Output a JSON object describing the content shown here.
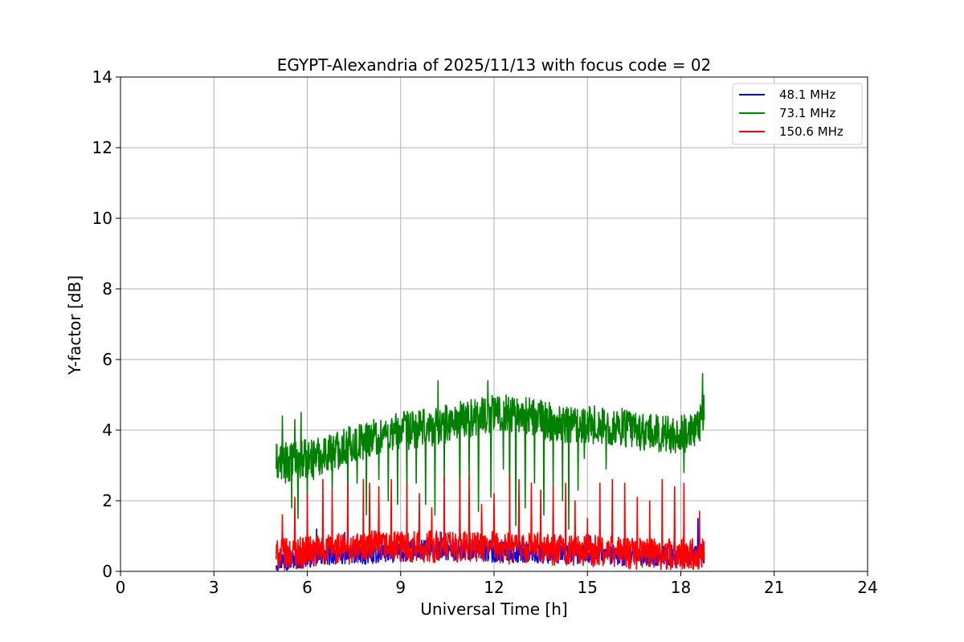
{
  "chart_data": {
    "type": "line",
    "title": "EGYPT-Alexandria of 2025/11/13 with focus code = 02",
    "xlabel": "Universal Time [h]",
    "ylabel": "Y-factor [dB]",
    "xlim": [
      0,
      24
    ],
    "ylim": [
      0,
      14
    ],
    "xticks": [
      0,
      3,
      6,
      9,
      12,
      15,
      18,
      21,
      24
    ],
    "yticks": [
      0,
      2,
      4,
      6,
      8,
      10,
      12,
      14
    ],
    "grid": true,
    "legend_position": "top-right",
    "series": [
      {
        "name": "  48.1 MHz",
        "color": "#0000ff",
        "x": [
          5.0,
          5.5,
          6.0,
          6.5,
          7.0,
          7.5,
          8.0,
          8.5,
          9.0,
          9.5,
          10.0,
          10.5,
          11.0,
          11.5,
          12.0,
          12.5,
          13.0,
          13.5,
          14.0,
          14.5,
          15.0,
          15.5,
          16.0,
          16.5,
          17.0,
          17.5,
          18.0,
          18.5,
          18.75
        ],
        "y": [
          0.3,
          0.35,
          0.4,
          0.45,
          0.5,
          0.5,
          0.5,
          0.55,
          0.55,
          0.6,
          0.6,
          0.6,
          0.6,
          0.6,
          0.55,
          0.55,
          0.55,
          0.5,
          0.5,
          0.5,
          0.5,
          0.5,
          0.45,
          0.45,
          0.45,
          0.45,
          0.45,
          0.5,
          0.5
        ],
        "noise_amplitude": 0.3,
        "spikes": [
          [
            6.3,
            1.2
          ],
          [
            7.2,
            1.1
          ],
          [
            10.3,
            1.1
          ],
          [
            15.1,
            1.0
          ],
          [
            17.0,
            0.9
          ],
          [
            18.55,
            1.5
          ]
        ]
      },
      {
        "name": "  73.1 MHz",
        "color": "#008000",
        "x": [
          5.0,
          5.5,
          6.0,
          6.5,
          7.0,
          7.5,
          8.0,
          8.5,
          9.0,
          9.5,
          10.0,
          10.5,
          11.0,
          11.5,
          12.0,
          12.5,
          13.0,
          13.5,
          14.0,
          14.5,
          15.0,
          15.5,
          16.0,
          16.5,
          17.0,
          17.5,
          18.0,
          18.5,
          18.75
        ],
        "y": [
          3.1,
          3.1,
          3.2,
          3.3,
          3.5,
          3.6,
          3.8,
          3.9,
          4.0,
          4.0,
          4.1,
          4.2,
          4.3,
          4.4,
          4.5,
          4.5,
          4.4,
          4.3,
          4.2,
          4.2,
          4.2,
          4.1,
          4.1,
          4.0,
          3.9,
          3.9,
          3.9,
          3.9,
          4.5
        ],
        "noise_amplitude": 0.55,
        "spikes": [
          [
            5.2,
            4.4
          ],
          [
            5.6,
            4.3
          ],
          [
            5.8,
            4.5
          ],
          [
            10.2,
            5.4
          ],
          [
            11.8,
            5.4
          ],
          [
            18.7,
            5.6
          ]
        ],
        "dips": [
          [
            5.3,
            2.5
          ],
          [
            5.5,
            1.8
          ],
          [
            5.7,
            1.5
          ],
          [
            6.0,
            2.0
          ],
          [
            6.2,
            2.6
          ],
          [
            6.6,
            3.2
          ],
          [
            6.8,
            2.3
          ],
          [
            7.0,
            2.9
          ],
          [
            7.3,
            1.7
          ],
          [
            7.6,
            2.5
          ],
          [
            7.9,
            1.6
          ],
          [
            8.3,
            2.6
          ],
          [
            8.6,
            2.0
          ],
          [
            8.9,
            1.9
          ],
          [
            9.2,
            2.1
          ],
          [
            9.5,
            2.5
          ],
          [
            9.8,
            1.9
          ],
          [
            10.1,
            1.6
          ],
          [
            10.4,
            2.5
          ],
          [
            10.9,
            1.4
          ],
          [
            11.2,
            2.6
          ],
          [
            11.5,
            1.7
          ],
          [
            11.9,
            2.1
          ],
          [
            12.3,
            2.9
          ],
          [
            12.5,
            1.5
          ],
          [
            12.7,
            1.3
          ],
          [
            13.0,
            1.8
          ],
          [
            13.3,
            2.5
          ],
          [
            13.6,
            1.6
          ],
          [
            13.9,
            2.3
          ],
          [
            14.2,
            2.0
          ],
          [
            14.4,
            1.2
          ],
          [
            14.7,
            2.3
          ],
          [
            14.9,
            3.2
          ],
          [
            15.6,
            2.9
          ],
          [
            18.1,
            2.8
          ]
        ]
      },
      {
        "name": "150.6 MHz",
        "color": "#ff0000",
        "x": [
          5.0,
          5.5,
          6.0,
          6.5,
          7.0,
          7.5,
          8.0,
          8.5,
          9.0,
          9.5,
          10.0,
          10.5,
          11.0,
          11.5,
          12.0,
          12.5,
          13.0,
          13.5,
          14.0,
          14.5,
          15.0,
          15.5,
          16.0,
          16.5,
          17.0,
          17.5,
          18.0,
          18.5,
          18.75
        ],
        "y": [
          0.45,
          0.5,
          0.55,
          0.6,
          0.65,
          0.65,
          0.7,
          0.7,
          0.7,
          0.7,
          0.7,
          0.7,
          0.7,
          0.7,
          0.7,
          0.65,
          0.65,
          0.65,
          0.6,
          0.6,
          0.6,
          0.55,
          0.55,
          0.5,
          0.5,
          0.5,
          0.5,
          0.5,
          0.5
        ],
        "noise_amplitude": 0.45,
        "spikes": [
          [
            5.2,
            1.6
          ],
          [
            5.6,
            2.1
          ],
          [
            6.0,
            2.2
          ],
          [
            6.5,
            2.6
          ],
          [
            6.8,
            2.3
          ],
          [
            7.3,
            2.5
          ],
          [
            7.8,
            2.6
          ],
          [
            8.0,
            2.5
          ],
          [
            8.3,
            2.4
          ],
          [
            8.7,
            2.6
          ],
          [
            9.2,
            2.5
          ],
          [
            9.6,
            2.2
          ],
          [
            10.0,
            1.8
          ],
          [
            10.4,
            2.7
          ],
          [
            10.9,
            2.6
          ],
          [
            11.2,
            2.7
          ],
          [
            11.6,
            1.9
          ],
          [
            12.0,
            2.2
          ],
          [
            12.5,
            2.7
          ],
          [
            12.8,
            2.6
          ],
          [
            13.2,
            2.5
          ],
          [
            13.5,
            2.3
          ],
          [
            13.9,
            2.4
          ],
          [
            14.3,
            2.5
          ],
          [
            14.6,
            2.0
          ],
          [
            15.0,
            1.5
          ],
          [
            15.4,
            2.5
          ],
          [
            15.8,
            2.6
          ],
          [
            16.2,
            2.5
          ],
          [
            16.6,
            2.1
          ],
          [
            17.0,
            2.0
          ],
          [
            17.4,
            2.6
          ],
          [
            17.8,
            2.4
          ],
          [
            18.1,
            2.5
          ],
          [
            18.6,
            1.7
          ]
        ]
      }
    ]
  }
}
